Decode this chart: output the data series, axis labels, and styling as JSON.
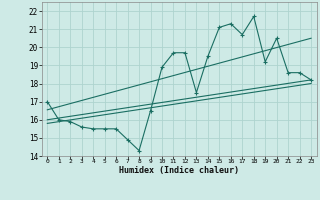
{
  "xlabel": "Humidex (Indice chaleur)",
  "xlim": [
    -0.5,
    23.5
  ],
  "ylim": [
    14,
    22.5
  ],
  "yticks": [
    14,
    15,
    16,
    17,
    18,
    19,
    20,
    21,
    22
  ],
  "xticks": [
    0,
    1,
    2,
    3,
    4,
    5,
    6,
    7,
    8,
    9,
    10,
    11,
    12,
    13,
    14,
    15,
    16,
    17,
    18,
    19,
    20,
    21,
    22,
    23
  ],
  "bg_color": "#ceeae6",
  "grid_color": "#aed4cf",
  "line_color": "#1a6e62",
  "line1_x": [
    0,
    1,
    2,
    3,
    4,
    5,
    6,
    7,
    8,
    9,
    10,
    11,
    12,
    13,
    14,
    15,
    16,
    17,
    18,
    19,
    20,
    21,
    22,
    23
  ],
  "line1_y": [
    17.0,
    16.0,
    15.9,
    15.6,
    15.5,
    15.5,
    15.5,
    14.9,
    14.3,
    16.5,
    18.9,
    19.7,
    19.7,
    17.5,
    19.5,
    21.1,
    21.3,
    20.7,
    21.7,
    19.2,
    20.5,
    18.6,
    18.6,
    18.2
  ],
  "line2_x": [
    0,
    23
  ],
  "line2_y": [
    16.0,
    18.2
  ],
  "line3_x": [
    0,
    23
  ],
  "line3_y": [
    15.8,
    18.0
  ],
  "line4_x": [
    0,
    23
  ],
  "line4_y": [
    16.55,
    20.5
  ]
}
